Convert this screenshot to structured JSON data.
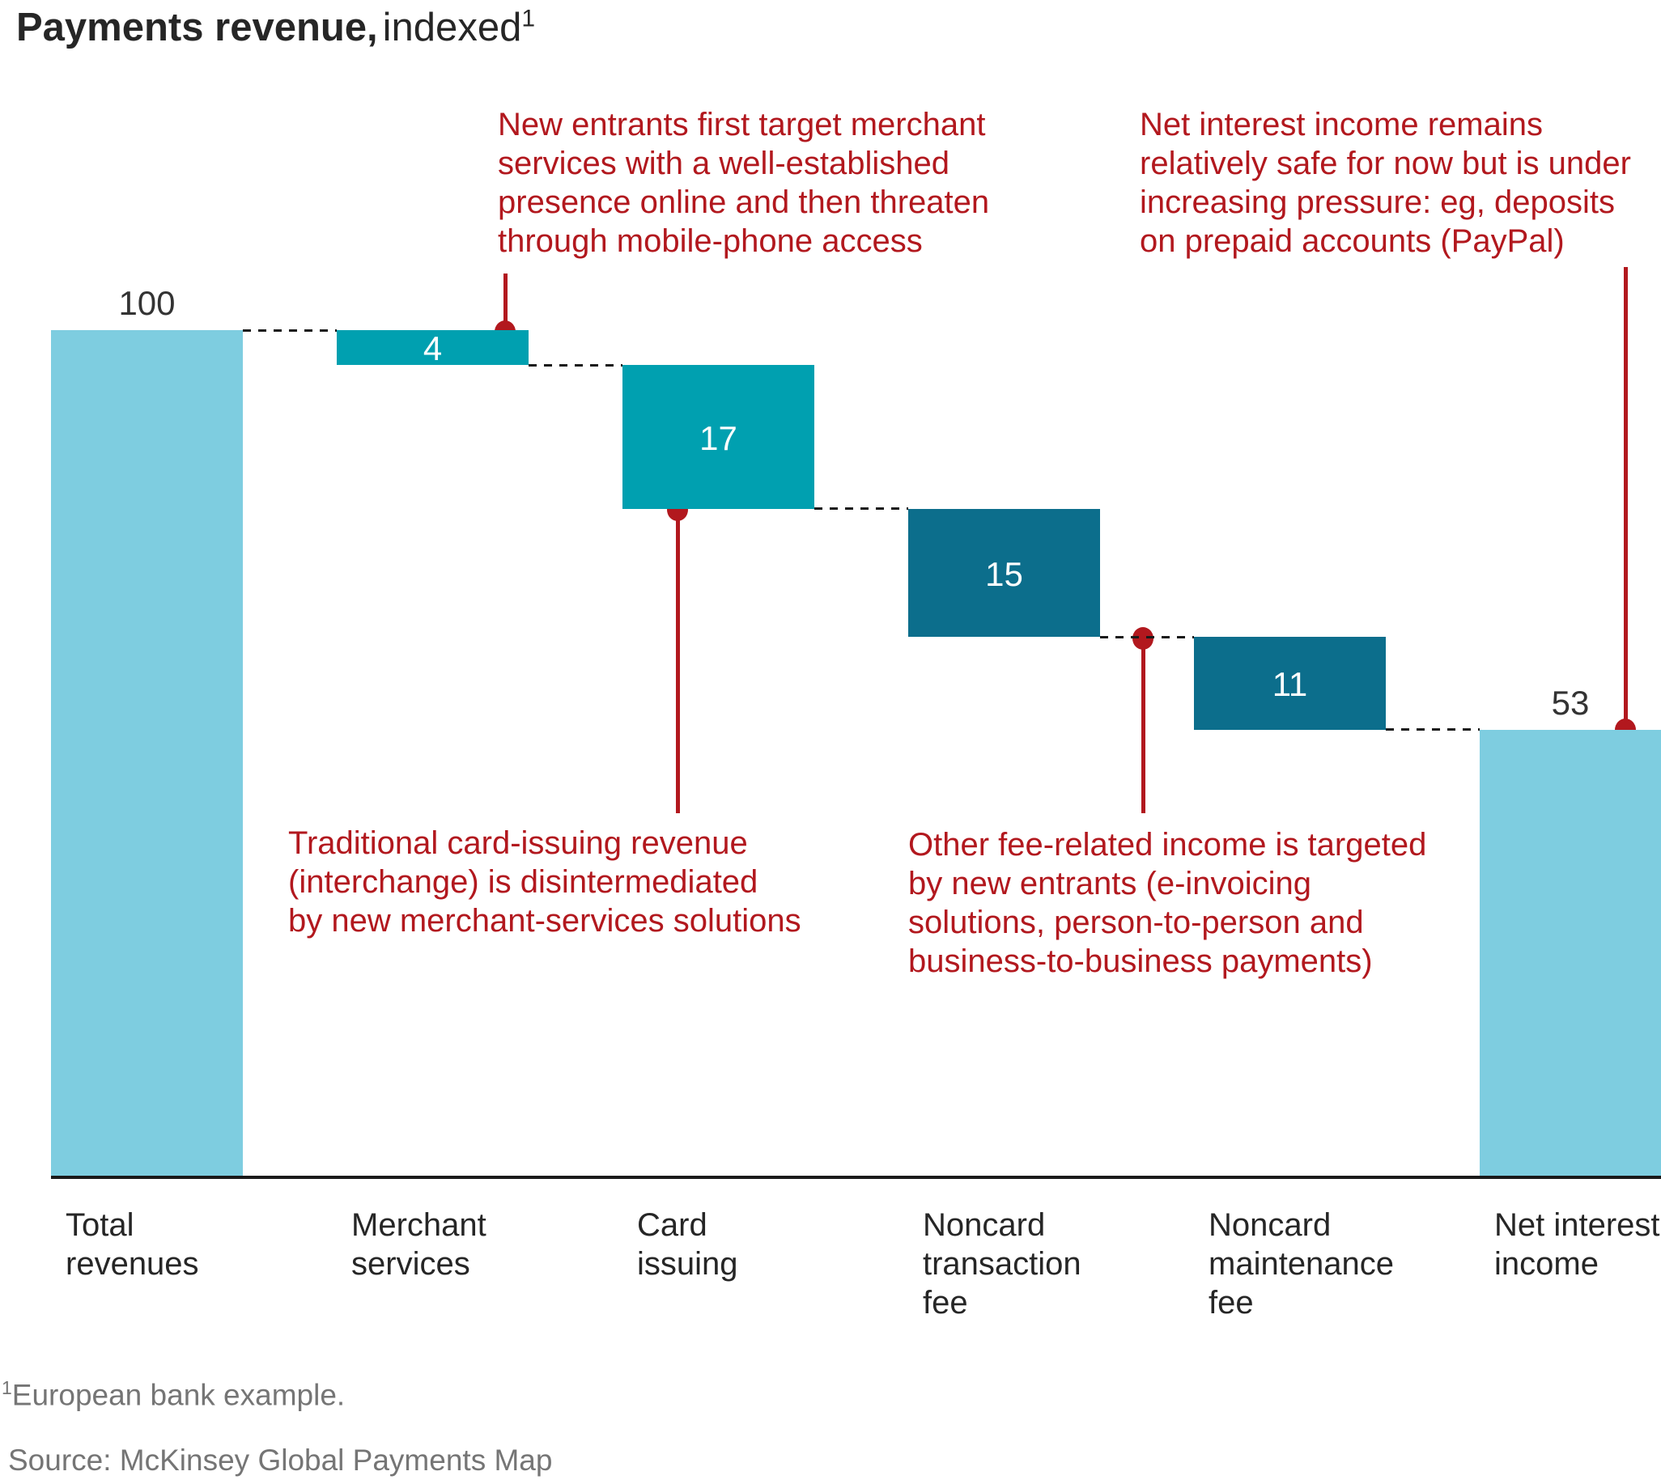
{
  "title": {
    "bold": "Payments revenue,",
    "regular": "indexed",
    "superscript": "1"
  },
  "chart_data": {
    "type": "bar",
    "subtype": "waterfall",
    "title": "Payments revenue, indexed",
    "categories": [
      "Total revenues",
      "Merchant services",
      "Card issuing",
      "Noncard transaction fee",
      "Noncard maintenance fee",
      "Net interest income"
    ],
    "values": [
      100,
      4,
      17,
      15,
      11,
      53
    ],
    "bar_types": [
      "total",
      "decrease",
      "decrease",
      "decrease",
      "decrease",
      "remainder"
    ],
    "bar_colors": [
      "light_blue",
      "teal",
      "teal",
      "dark_teal",
      "dark_teal",
      "light_blue"
    ],
    "value_label_positions": [
      "above",
      "inside",
      "inside",
      "inside",
      "inside",
      "above"
    ],
    "grid": false,
    "legend": false,
    "axis_range_note": "waterfall steps: 100 - 4 - 17 - 15 - 11 = 53"
  },
  "annotations": [
    {
      "text": "New entrants first target merchant\nservices with a well-established\npresence online and then threaten\nthrough mobile-phone access",
      "target": "Merchant services"
    },
    {
      "text": "Net interest income remains\nrelatively safe for now but is under\nincreasing pressure: eg, deposits\non prepaid accounts (PayPal)",
      "target": "Net interest income"
    },
    {
      "text": "Traditional card-issuing revenue\n(interchange) is disintermediated\nby new merchant-services solutions",
      "target": "Card issuing"
    },
    {
      "text": "Other fee-related income is targeted\nby new entrants (e-invoicing\nsolutions, person-to-person and\nbusiness-to-business payments)",
      "target": "Noncard transaction fee"
    }
  ],
  "footnotes": {
    "superscript": "1",
    "note": "European bank example.",
    "source": "Source: McKinsey Global Payments Map"
  },
  "colors": {
    "light_blue": "#7ECDE0",
    "teal": "#00A0B0",
    "dark_teal": "#0C6E8C",
    "annotation_red": "#B2181E",
    "text_dark": "#262626",
    "footnote_gray": "#757575",
    "axis_black": "#1A1A1A"
  }
}
